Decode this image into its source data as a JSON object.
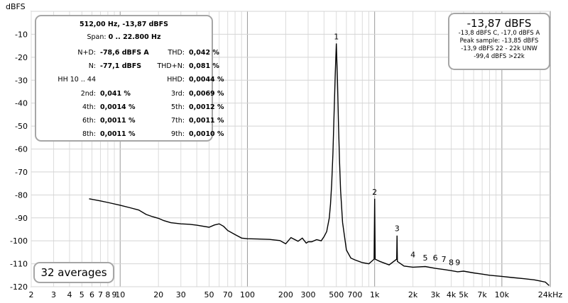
{
  "chart_data": {
    "type": "line",
    "ylabel": "dBFS",
    "xlabel": "",
    "x_scale": "log",
    "xlim": [
      2,
      24000
    ],
    "ylim": [
      -120,
      0
    ],
    "x_ticks": [
      {
        "v": 2,
        "label": "2"
      },
      {
        "v": 3,
        "label": "3"
      },
      {
        "v": 4,
        "label": "4"
      },
      {
        "v": 5,
        "label": "5"
      },
      {
        "v": 6,
        "label": "6"
      },
      {
        "v": 7,
        "label": "7"
      },
      {
        "v": 8,
        "label": "8"
      },
      {
        "v": 9,
        "label": "9"
      },
      {
        "v": 10,
        "label": "10"
      },
      {
        "v": 20,
        "label": "20"
      },
      {
        "v": 30,
        "label": "30"
      },
      {
        "v": 50,
        "label": "50"
      },
      {
        "v": 70,
        "label": "70"
      },
      {
        "v": 100,
        "label": "100"
      },
      {
        "v": 200,
        "label": "200"
      },
      {
        "v": 300,
        "label": "300"
      },
      {
        "v": 500,
        "label": "500"
      },
      {
        "v": 700,
        "label": "700"
      },
      {
        "v": 1000,
        "label": "1k"
      },
      {
        "v": 2000,
        "label": "2k"
      },
      {
        "v": 3000,
        "label": "3k"
      },
      {
        "v": 4000,
        "label": "4k"
      },
      {
        "v": 5000,
        "label": "5k"
      },
      {
        "v": 7000,
        "label": "7k"
      },
      {
        "v": 10000,
        "label": "10k"
      },
      {
        "v": 24000,
        "label": "24kHz"
      }
    ],
    "y_ticks": [
      {
        "v": -10,
        "label": "-10"
      },
      {
        "v": -20,
        "label": "-20"
      },
      {
        "v": -30,
        "label": "-30"
      },
      {
        "v": -40,
        "label": "-40"
      },
      {
        "v": -50,
        "label": "-50"
      },
      {
        "v": -60,
        "label": "-60"
      },
      {
        "v": -70,
        "label": "-70"
      },
      {
        "v": -80,
        "label": "-80"
      },
      {
        "v": -90,
        "label": "-90"
      },
      {
        "v": -100,
        "label": "-100"
      },
      {
        "v": -110,
        "label": "-110"
      },
      {
        "v": -120,
        "label": "-120"
      }
    ],
    "grid": true,
    "series": [
      {
        "color": "#000000",
        "x": [
          5.7,
          7,
          8,
          10,
          12,
          14,
          16,
          18,
          20,
          22,
          25,
          30,
          35,
          40,
          50,
          55,
          60,
          65,
          70,
          80,
          90,
          100,
          120,
          150,
          180,
          200,
          220,
          250,
          270,
          290,
          300,
          320,
          350,
          380,
          400,
          420,
          440,
          450,
          460,
          470,
          480,
          490,
          500,
          510,
          520,
          530,
          540,
          560,
          600,
          650,
          700,
          800,
          900,
          990,
          1000,
          1010,
          1100,
          1300,
          1490,
          1500,
          1510,
          1700,
          2000,
          2500,
          3000,
          3500,
          4000,
          4500,
          5000,
          6000,
          7000,
          8000,
          10000,
          12000,
          15000,
          18000,
          20000,
          22000,
          23500
        ],
        "y": [
          -81.7,
          -82.6,
          -83.3,
          -84.5,
          -85.6,
          -86.6,
          -88.5,
          -89.5,
          -90.2,
          -91.2,
          -92.1,
          -92.6,
          -92.8,
          -93.2,
          -94.1,
          -93.1,
          -92.6,
          -93.7,
          -95.5,
          -97.3,
          -98.8,
          -99.1,
          -99.2,
          -99.4,
          -99.9,
          -101.3,
          -98.6,
          -100.2,
          -98.8,
          -101.0,
          -100.4,
          -100.4,
          -99.5,
          -100.0,
          -98.2,
          -96.0,
          -90.0,
          -84.0,
          -75.0,
          -62.0,
          -45.0,
          -28.0,
          -14.0,
          -30.0,
          -50.0,
          -66.0,
          -78.0,
          -92.0,
          -104.0,
          -107.5,
          -108.3,
          -109.5,
          -110.0,
          -108.0,
          -81.7,
          -108.0,
          -109.0,
          -110.5,
          -108.0,
          -97.7,
          -109.0,
          -111.0,
          -111.5,
          -111.2,
          -112.0,
          -112.5,
          -113.0,
          -113.5,
          -113.2,
          -114.0,
          -114.5,
          -115.0,
          -115.5,
          -116.0,
          -116.5,
          -117.0,
          -117.5,
          -118.0,
          -119.5
        ]
      }
    ],
    "annotations": [
      {
        "text": "1",
        "x": 500,
        "y": -14
      },
      {
        "text": "2",
        "x": 1000,
        "y": -81.7
      },
      {
        "text": "3",
        "x": 1500,
        "y": -97.7
      },
      {
        "text": "4",
        "x": 2000,
        "y": -109
      },
      {
        "text": "5",
        "x": 2500,
        "y": -110.5
      },
      {
        "text": "6",
        "x": 3000,
        "y": -110.5
      },
      {
        "text": "7",
        "x": 3500,
        "y": -111
      },
      {
        "text": "8",
        "x": 4000,
        "y": -112.5
      },
      {
        "text": "9",
        "x": 4500,
        "y": -112.5
      }
    ]
  },
  "stats": {
    "header": "512,00 Hz, -13,87 dBFS",
    "span_label": "Span:",
    "span_value": "0 .. 22.800 Hz",
    "rows": [
      {
        "l1": "N+D:",
        "v1": "-78,6 dBFS A",
        "l2": "THD:",
        "v2": "0,042 %"
      },
      {
        "l1": "N:",
        "v1": "-77,1 dBFS",
        "l2": "THD+N:",
        "v2": "0,081 %"
      },
      {
        "l1": "HH 10 .. 44",
        "v1": "",
        "l2": "HHD:",
        "v2": "0,0044 %"
      },
      {
        "l1": "2nd:",
        "v1": "0,041 %",
        "l2": "3rd:",
        "v2": "0,0069 %"
      },
      {
        "l1": "4th:",
        "v1": "0,0014 %",
        "l2": "5th:",
        "v2": "0,0012 %"
      },
      {
        "l1": "6th:",
        "v1": "0,0011 %",
        "l2": "7th:",
        "v2": "0,0011 %"
      },
      {
        "l1": "8th:",
        "v1": "0,0011 %",
        "l2": "9th:",
        "v2": "0,0010 %"
      }
    ]
  },
  "level": {
    "main": "-13,87 dBFS",
    "lines": [
      "-13,8 dBFS C, -17,0 dBFS A",
      "Peak sample: -13,85 dBFS",
      "-13,9 dBFS 22 - 22k UNW",
      "-99,4 dBFS >22k"
    ]
  },
  "averages": "32 averages"
}
